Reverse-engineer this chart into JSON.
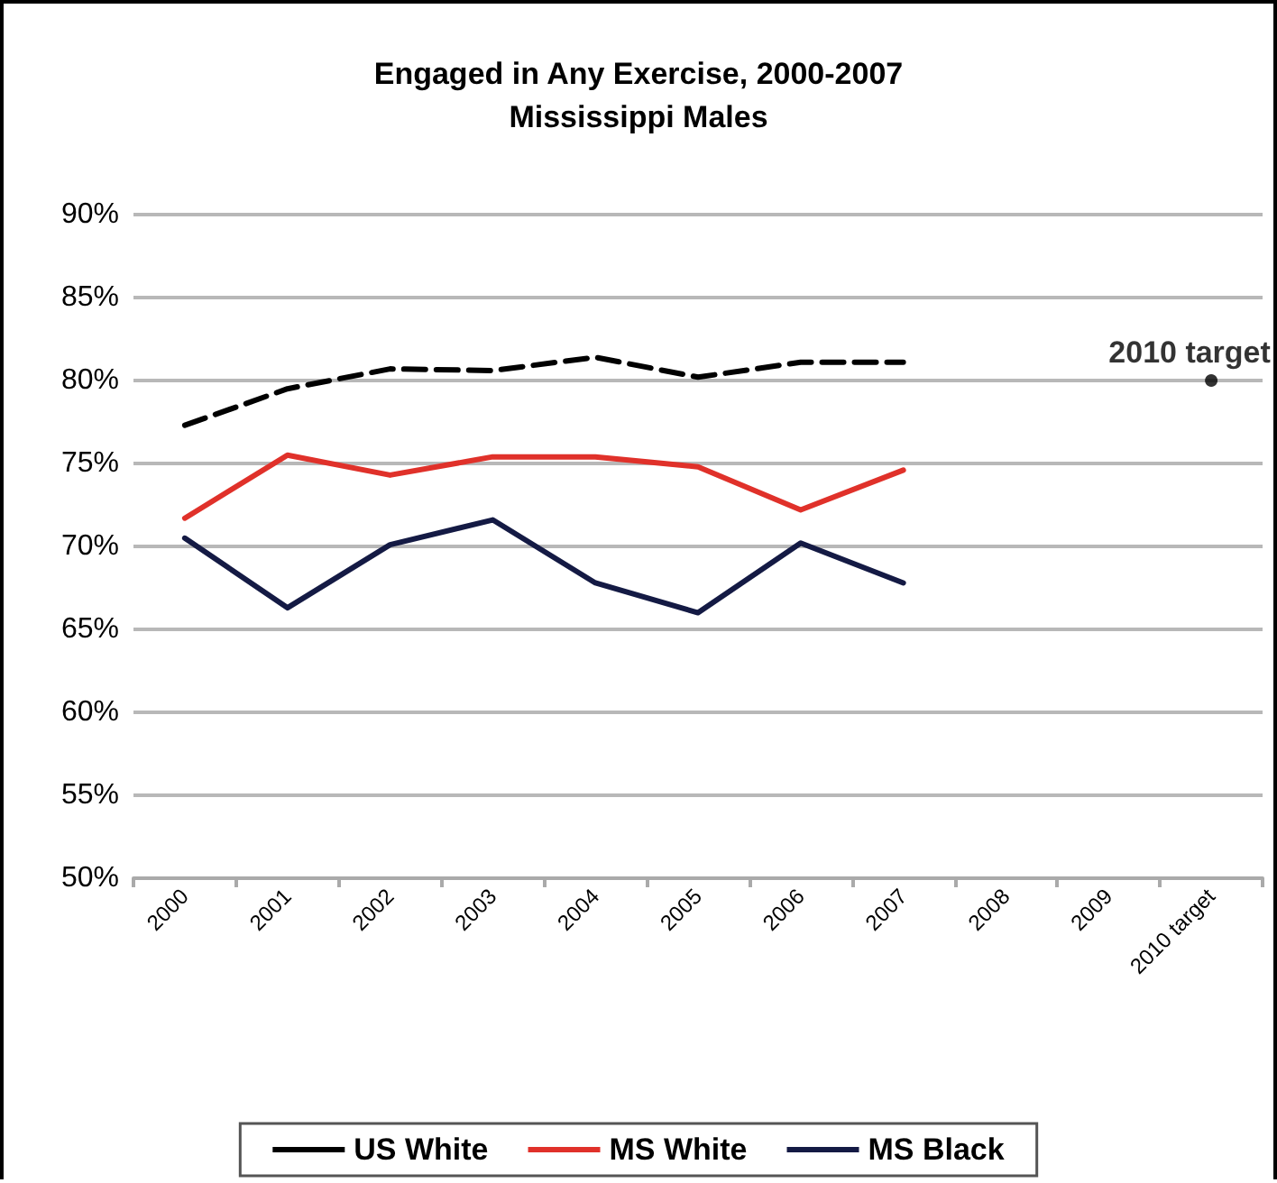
{
  "chart_data": {
    "type": "line",
    "title": "Engaged in Any Exercise, 2000-2007",
    "subtitle": "Mississippi Males",
    "categories": [
      "2000",
      "2001",
      "2002",
      "2003",
      "2004",
      "2005",
      "2006",
      "2007",
      "2008",
      "2009",
      "2010 target"
    ],
    "series": [
      {
        "name": "US White",
        "color": "#000000",
        "line_style": "dashed",
        "values": [
          77.3,
          79.5,
          80.7,
          80.6,
          81.4,
          80.2,
          81.1,
          81.1,
          null,
          null,
          null
        ]
      },
      {
        "name": "MS White",
        "color": "#e0312a",
        "line_style": "solid",
        "values": [
          71.7,
          75.5,
          74.3,
          75.4,
          75.4,
          74.8,
          72.2,
          74.6,
          null,
          null,
          null
        ]
      },
      {
        "name": "MS Black",
        "color": "#141a44",
        "line_style": "solid",
        "values": [
          70.5,
          66.3,
          70.1,
          71.6,
          67.8,
          66.0,
          70.2,
          67.8,
          null,
          null,
          null
        ]
      },
      {
        "type": "scatter",
        "color": "#000000",
        "marker": "circle",
        "x": [
          "2010 target"
        ],
        "values": [
          80
        ]
      }
    ],
    "annotations": [
      {
        "text": "2010 target",
        "x": "2010 target",
        "y": 80
      }
    ],
    "ylim": [
      50,
      90
    ],
    "yticks": [
      {
        "value": 50,
        "label": "50%"
      },
      {
        "value": 55,
        "label": "55%"
      },
      {
        "value": 60,
        "label": "60%"
      },
      {
        "value": 65,
        "label": "65%"
      },
      {
        "value": 70,
        "label": "70%"
      },
      {
        "value": 75,
        "label": "75%"
      },
      {
        "value": 80,
        "label": "80%"
      },
      {
        "value": 85,
        "label": "85%"
      },
      {
        "value": 90,
        "label": "90%"
      }
    ],
    "grid": "y",
    "legend": "bottom",
    "marker": "none"
  }
}
